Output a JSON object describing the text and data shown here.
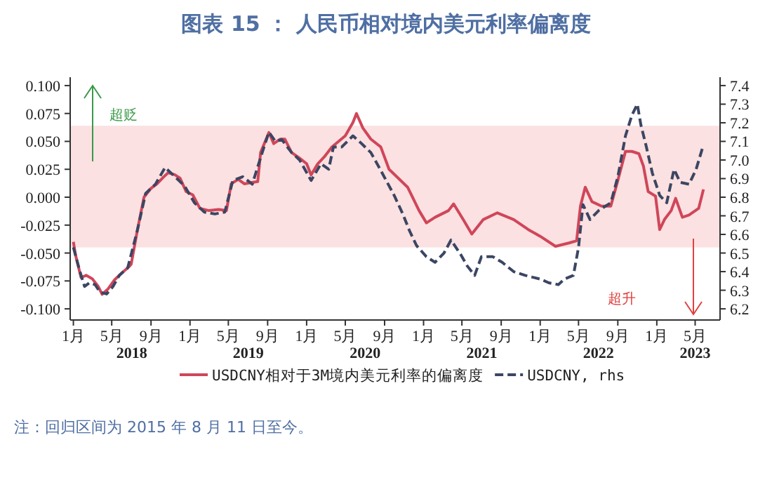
{
  "chart_data": {
    "type": "line",
    "title": "图表 15 ： 人民币相对境内美元利率偏离度",
    "xlim": [
      "2017-12-22",
      "2023-07-18"
    ],
    "xticks": [
      {
        "value": "2018-01-01",
        "label": "1月"
      },
      {
        "value": "2018-05-01",
        "label": "5月"
      },
      {
        "value": "2018-09-01",
        "label": "9月"
      },
      {
        "value": "2019-01-01",
        "label": "1月"
      },
      {
        "value": "2019-05-01",
        "label": "5月"
      },
      {
        "value": "2019-09-01",
        "label": "9月"
      },
      {
        "value": "2020-01-01",
        "label": "1月"
      },
      {
        "value": "2020-05-01",
        "label": "5月"
      },
      {
        "value": "2020-09-01",
        "label": "9月"
      },
      {
        "value": "2021-01-01",
        "label": "1月"
      },
      {
        "value": "2021-05-01",
        "label": "5月"
      },
      {
        "value": "2021-09-01",
        "label": "9月"
      },
      {
        "value": "2022-01-01",
        "label": "1月"
      },
      {
        "value": "2022-05-01",
        "label": "5月"
      },
      {
        "value": "2022-09-01",
        "label": "9月"
      },
      {
        "value": "2023-01-01",
        "label": "1月"
      },
      {
        "value": "2023-05-01",
        "label": "5月"
      }
    ],
    "ylim": [
      -0.11,
      0.1075
    ],
    "yticks": [
      {
        "value": 0.1,
        "label": "0.100"
      },
      {
        "value": 0.075,
        "label": "0.075"
      },
      {
        "value": 0.05,
        "label": "0.050"
      },
      {
        "value": 0.025,
        "label": "0.025"
      },
      {
        "value": 0,
        "label": "0.000"
      },
      {
        "value": -0.025,
        "label": "-0.025"
      },
      {
        "value": -0.05,
        "label": "-0.050"
      },
      {
        "value": -0.075,
        "label": "-0.075"
      },
      {
        "value": -0.1,
        "label": "-0.100"
      }
    ],
    "y2lim": [
      6.14,
      7.445
    ],
    "y2ticks": [
      {
        "value": 7.4,
        "label": "7.4"
      },
      {
        "value": 7.3,
        "label": "7.3"
      },
      {
        "value": 7.2,
        "label": "7.2"
      },
      {
        "value": 7.1,
        "label": "7.1"
      },
      {
        "value": 7.0,
        "label": "7.0"
      },
      {
        "value": 6.9,
        "label": "6.9"
      },
      {
        "value": 6.8,
        "label": "6.8"
      },
      {
        "value": 6.7,
        "label": "6.7"
      },
      {
        "value": 6.6,
        "label": "6.6"
      },
      {
        "value": 6.5,
        "label": "6.5"
      },
      {
        "value": 6.4,
        "label": "6.4"
      },
      {
        "value": 6.3,
        "label": "6.3"
      },
      {
        "value": 6.2,
        "label": "6.2"
      }
    ],
    "bands": [
      {
        "axis": "y",
        "from": -0.045,
        "to": 0.064,
        "color": "#fbe1e1"
      }
    ],
    "legend": "bottom",
    "series": [
      {
        "name": "USDCNY相对于3M境内美元利率的偏离度",
        "color": "#d0465a",
        "line_style": "solid",
        "x": [
          "2018-01-01",
          "2018-01-08",
          "2018-01-25",
          "2018-02-10",
          "2018-03-01",
          "2018-03-20",
          "2018-04-01",
          "2018-04-20",
          "2018-05-10",
          "2018-06-01",
          "2018-06-25",
          "2018-07-01",
          "2018-07-20",
          "2018-08-10",
          "2018-09-01",
          "2018-09-20",
          "2018-10-10",
          "2018-10-25",
          "2018-11-15",
          "2018-12-01",
          "2018-12-20",
          "2019-01-10",
          "2019-02-01",
          "2019-03-01",
          "2019-04-01",
          "2019-04-25",
          "2019-05-10",
          "2019-06-01",
          "2019-06-20",
          "2019-07-10",
          "2019-08-01",
          "2019-08-10",
          "2019-09-05",
          "2019-09-20",
          "2019-10-10",
          "2019-10-25",
          "2019-11-15",
          "2019-12-10",
          "2020-01-01",
          "2020-01-15",
          "2020-02-05",
          "2020-02-25",
          "2020-03-20",
          "2020-04-10",
          "2020-05-01",
          "2020-05-25",
          "2020-06-05",
          "2020-06-25",
          "2020-07-20",
          "2020-08-20",
          "2020-09-15",
          "2020-11-12",
          "2020-12-18",
          "2021-01-10",
          "2021-02-06",
          "2021-03-20",
          "2021-04-05",
          "2021-05-05",
          "2021-06-01",
          "2021-07-07",
          "2021-08-20",
          "2021-10-10",
          "2021-11-25",
          "2022-01-01",
          "2022-02-18",
          "2022-04-01",
          "2022-04-25",
          "2022-05-07",
          "2022-05-22",
          "2022-06-12",
          "2022-07-12",
          "2022-08-10",
          "2022-09-01",
          "2022-09-25",
          "2022-10-15",
          "2022-11-06",
          "2022-11-20",
          "2022-12-05",
          "2022-12-28",
          "2023-01-10",
          "2023-01-25",
          "2023-02-15",
          "2023-03-01",
          "2023-03-22",
          "2023-04-12",
          "2023-05-12",
          "2023-05-27"
        ],
        "values": [
          -0.04,
          -0.052,
          -0.072,
          -0.07,
          -0.073,
          -0.08,
          -0.087,
          -0.082,
          -0.074,
          -0.068,
          -0.062,
          -0.06,
          -0.03,
          0.0,
          0.008,
          0.012,
          0.018,
          0.022,
          0.02,
          0.017,
          0.005,
          0.002,
          -0.01,
          -0.012,
          -0.011,
          -0.012,
          0.012,
          0.016,
          0.012,
          0.013,
          0.014,
          0.04,
          0.058,
          0.048,
          0.052,
          0.052,
          0.04,
          0.035,
          0.03,
          0.02,
          0.03,
          0.036,
          0.045,
          0.05,
          0.055,
          0.067,
          0.075,
          0.062,
          0.052,
          0.045,
          0.025,
          0.009,
          -0.012,
          -0.023,
          -0.018,
          -0.012,
          -0.006,
          -0.02,
          -0.033,
          -0.02,
          -0.014,
          -0.02,
          -0.029,
          -0.035,
          -0.044,
          -0.041,
          -0.039,
          -0.008,
          0.009,
          -0.004,
          -0.008,
          -0.008,
          0.015,
          0.041,
          0.041,
          0.039,
          0.028,
          0.005,
          0.001,
          -0.029,
          -0.02,
          -0.012,
          -0.001,
          -0.018,
          -0.016,
          -0.01,
          0.007
        ]
      },
      {
        "name": "USDCNY, rhs",
        "color": "#3b4663",
        "line_style": "dashed",
        "axis": "y2",
        "x": [
          "2018-01-01",
          "2018-01-20",
          "2018-02-05",
          "2018-02-20",
          "2018-03-10",
          "2018-03-25",
          "2018-04-15",
          "2018-05-05",
          "2018-05-25",
          "2018-06-20",
          "2018-07-20",
          "2018-08-15",
          "2018-09-15",
          "2018-10-15",
          "2018-11-15",
          "2018-12-15",
          "2019-01-15",
          "2019-02-15",
          "2019-03-20",
          "2019-04-20",
          "2019-05-15",
          "2019-06-15",
          "2019-07-15",
          "2019-08-15",
          "2019-09-05",
          "2019-09-25",
          "2019-10-15",
          "2019-11-15",
          "2019-12-10",
          "2020-01-15",
          "2020-02-15",
          "2020-03-10",
          "2020-03-25",
          "2020-04-20",
          "2020-05-25",
          "2020-06-20",
          "2020-07-20",
          "2020-08-15",
          "2020-10-01",
          "2020-10-28",
          "2020-11-18",
          "2020-12-10",
          "2021-01-10",
          "2021-02-06",
          "2021-03-06",
          "2021-03-28",
          "2021-04-28",
          "2021-05-18",
          "2021-06-10",
          "2021-07-01",
          "2021-08-06",
          "2021-09-04",
          "2021-10-10",
          "2021-11-15",
          "2022-01-01",
          "2022-01-28",
          "2022-02-27",
          "2022-03-18",
          "2022-04-15",
          "2022-05-01",
          "2022-05-15",
          "2022-06-06",
          "2022-07-04",
          "2022-08-10",
          "2022-09-01",
          "2022-09-25",
          "2022-10-15",
          "2022-11-01",
          "2022-11-12",
          "2022-11-28",
          "2022-12-18",
          "2023-01-10",
          "2023-02-01",
          "2023-02-24",
          "2023-03-15",
          "2023-04-12",
          "2023-05-04",
          "2023-05-25"
        ],
        "values": [
          6.53,
          6.41,
          6.32,
          6.34,
          6.33,
          6.29,
          6.28,
          6.32,
          6.38,
          6.42,
          6.62,
          6.82,
          6.87,
          6.96,
          6.91,
          6.86,
          6.77,
          6.72,
          6.71,
          6.72,
          6.89,
          6.91,
          6.87,
          7.04,
          7.15,
          7.1,
          7.11,
          7.04,
          7.0,
          6.89,
          6.98,
          6.95,
          7.07,
          7.07,
          7.13,
          7.09,
          7.04,
          6.96,
          6.81,
          6.71,
          6.62,
          6.54,
          6.48,
          6.45,
          6.5,
          6.57,
          6.49,
          6.43,
          6.38,
          6.48,
          6.48,
          6.45,
          6.4,
          6.38,
          6.36,
          6.34,
          6.33,
          6.36,
          6.38,
          6.53,
          6.76,
          6.68,
          6.73,
          6.77,
          6.91,
          7.13,
          7.24,
          7.3,
          7.19,
          7.08,
          6.93,
          6.81,
          6.77,
          6.95,
          6.88,
          6.87,
          6.95,
          7.07
        ]
      }
    ],
    "annotations": [
      "超贬",
      "超升",
      "2018",
      "2019",
      "2020",
      "2021",
      "2022",
      "2023",
      "注：回归区间为 2015 年 8 月 11 日至今。"
    ]
  }
}
